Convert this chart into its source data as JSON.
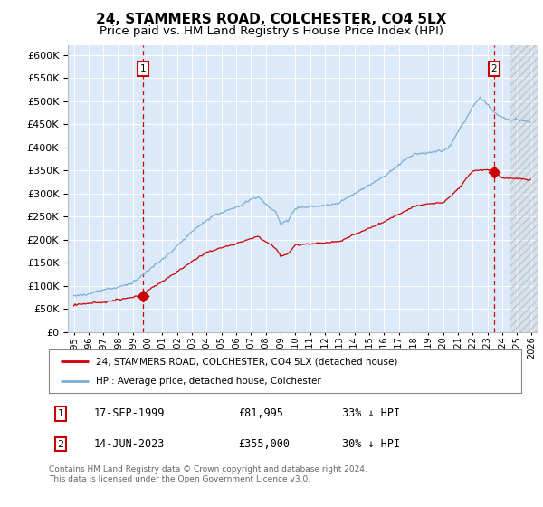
{
  "title": "24, STAMMERS ROAD, COLCHESTER, CO4 5LX",
  "subtitle": "Price paid vs. HM Land Registry's House Price Index (HPI)",
  "title_fontsize": 11,
  "subtitle_fontsize": 9.5,
  "ylim": [
    0,
    620000
  ],
  "ytick_vals": [
    0,
    50000,
    100000,
    150000,
    200000,
    250000,
    300000,
    350000,
    400000,
    450000,
    500000,
    550000,
    600000
  ],
  "xlim_start": 1994.6,
  "xlim_end": 2026.4,
  "plot_bg_color": "#dce9f8",
  "grid_color": "#ffffff",
  "red_color": "#cc0000",
  "blue_color": "#7aafd4",
  "marker1_x": 1999.71,
  "marker2_x": 2023.45,
  "legend_label_red": "24, STAMMERS ROAD, COLCHESTER, CO4 5LX (detached house)",
  "legend_label_blue": "HPI: Average price, detached house, Colchester",
  "footer1": "Contains HM Land Registry data © Crown copyright and database right 2024.",
  "footer2": "This data is licensed under the Open Government Licence v3.0.",
  "annot1_num": "1",
  "annot1_date": "17-SEP-1999",
  "annot1_price": "£81,995",
  "annot1_hpi": "33% ↓ HPI",
  "annot2_num": "2",
  "annot2_date": "14-JUN-2023",
  "annot2_price": "£355,000",
  "annot2_hpi": "30% ↓ HPI"
}
